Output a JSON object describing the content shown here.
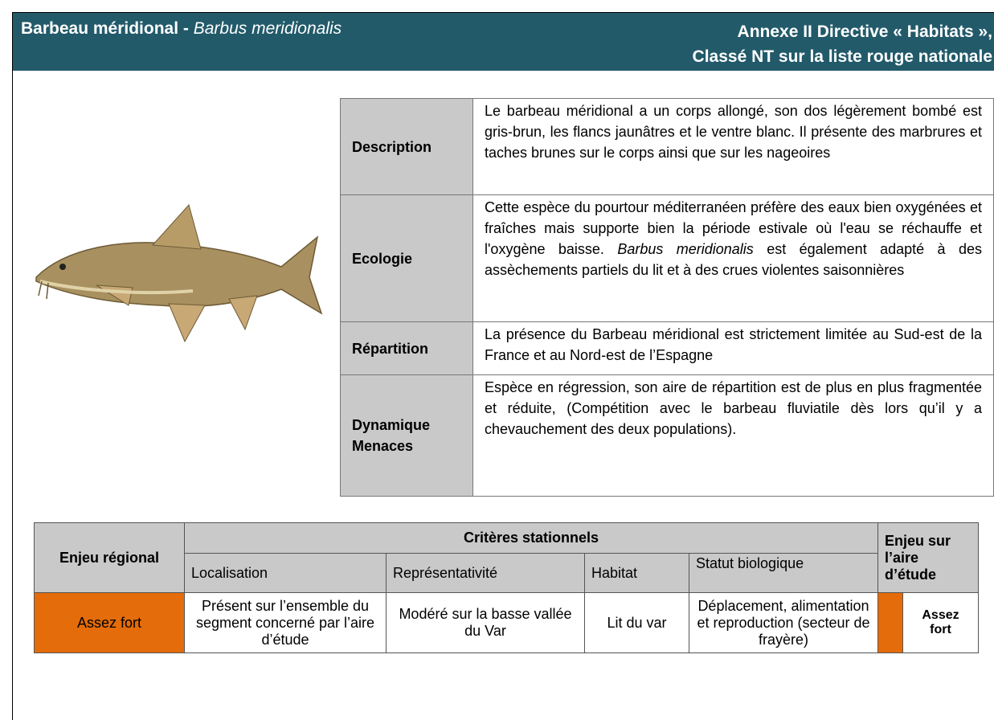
{
  "header": {
    "title": "Barbeau méridional -",
    "scientific_name": "Barbus meridionalis",
    "status_line1": "Annexe II Directive « Habitats »,",
    "status_line2": "Classé NT sur la liste rouge nationale"
  },
  "description_table": {
    "rows": [
      {
        "label": "Description",
        "text": "Le barbeau méridional a un corps allongé, son dos légèrement bombé est gris-brun, les flancs jaunâtres et le ventre blanc. Il présente des marbrures et taches brunes sur le corps ainsi que sur les nageoires"
      },
      {
        "label": "Ecologie",
        "text_parts": [
          "Cette espèce du pourtour méditerranéen préfère des eaux bien oxygénées et fraîches mais supporte bien la période estivale où l'eau se réchauffe et l'oxygène baisse.",
          "Barbus meridionalis",
          "est également adapté à des assèchements partiels du lit et à des crues violentes saisonnières"
        ]
      },
      {
        "label": "Répartition",
        "text": "La présence du Barbeau méridional est strictement limitée au Sud-est de la France et au Nord-est de l’Espagne"
      },
      {
        "label": "Dynamique Menaces",
        "text": "Espèce en régression, son aire de répartition est de plus en plus fragmentée et réduite, (Compétition avec le barbeau fluviatile dès lors qu’il y a chevauchement des deux populations)."
      }
    ]
  },
  "assessment_table": {
    "regional_header": "Enjeu régional",
    "criteria_header": "Critères stationnels",
    "study_area_header": "Enjeu sur l’aire d’étude",
    "columns": [
      "Localisation",
      "Représentativité",
      "Habitat",
      "Statut biologique"
    ],
    "regional_value": "Assez fort",
    "criteria_values": [
      "Présent sur l’ensemble du segment concerné par l’aire d’étude",
      "Modéré sur la basse vallée du Var",
      "Lit du var",
      "Déplacement, alimentation et reproduction (secteur de frayère)"
    ],
    "study_area_value": "Assez fort"
  }
}
